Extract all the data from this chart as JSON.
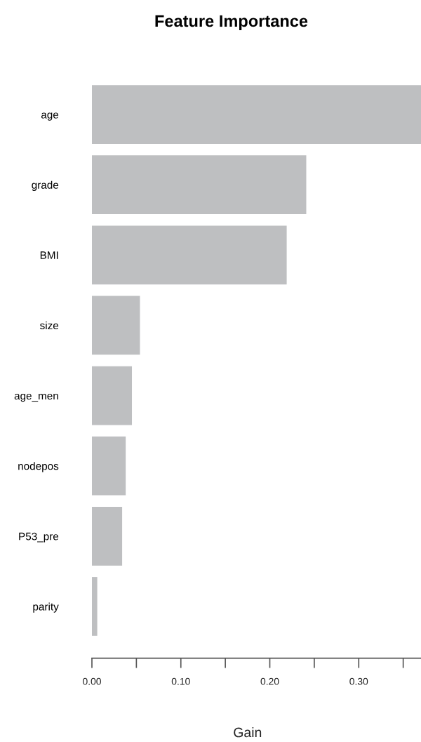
{
  "chart_data": {
    "type": "bar",
    "orientation": "horizontal",
    "title": "Feature Importance",
    "xlabel": "Gain",
    "categories": [
      "age",
      "grade",
      "BMI",
      "size",
      "age_men",
      "nodepos",
      "P53_pre",
      "parity"
    ],
    "values": [
      0.37,
      0.241,
      0.219,
      0.054,
      0.045,
      0.038,
      0.034,
      0.006
    ],
    "color": "#bebfc1",
    "xlim": [
      0,
      0.37
    ],
    "xticks": [
      {
        "value": 0,
        "label": "0.00"
      },
      {
        "value": 0.05,
        "label": null
      },
      {
        "value": 0.1,
        "label": "0.10"
      },
      {
        "value": 0.15,
        "label": null
      },
      {
        "value": 0.2,
        "label": "0.20"
      },
      {
        "value": 0.25,
        "label": null
      },
      {
        "value": 0.3,
        "label": "0.30"
      },
      {
        "value": 0.35,
        "label": null
      }
    ],
    "grid": false,
    "legend": false
  }
}
